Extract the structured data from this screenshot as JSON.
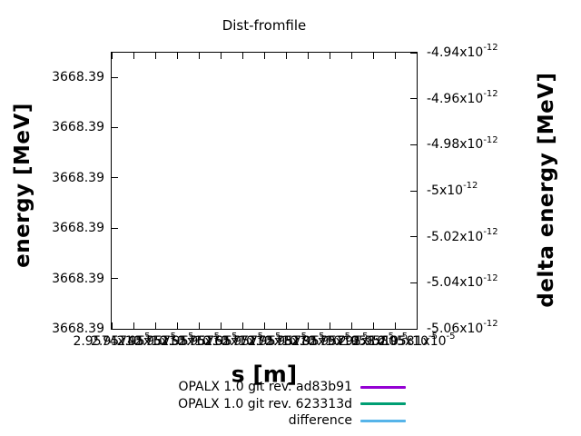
{
  "title": "Dist-fromfile",
  "axes": {
    "left": {
      "label": "energy [MeV]",
      "ticks": [
        "3668.39",
        "3668.39",
        "3668.39",
        "3668.39",
        "3668.39",
        "3668.39"
      ]
    },
    "right": {
      "label": "delta energy [MeV]",
      "ticks": [
        {
          "text": "-4.94x10",
          "sup": "-12"
        },
        {
          "text": "-4.96x10",
          "sup": "-12"
        },
        {
          "text": "-4.98x10",
          "sup": "-12"
        },
        {
          "text": "-5x10",
          "sup": "-12"
        },
        {
          "text": "-5.02x10",
          "sup": "-12"
        },
        {
          "text": "-5.04x10",
          "sup": "-12"
        },
        {
          "text": "-5.06x10",
          "sup": "-12"
        }
      ]
    },
    "bottom": {
      "label": "s [m]",
      "ticks": [
        {
          "text": "2.9574x10",
          "sup": "-5"
        },
        {
          "text": "2.95745x10",
          "sup": "-5"
        },
        {
          "text": "2.9575x10",
          "sup": "-5"
        },
        {
          "text": "2.95755x10",
          "sup": "-5"
        },
        {
          "text": "2.9576x10",
          "sup": "-5"
        },
        {
          "text": "2.95765x10",
          "sup": "-5"
        },
        {
          "text": "2.9577x10",
          "sup": "-5"
        },
        {
          "text": "2.95775x10",
          "sup": "-5"
        },
        {
          "text": "2.9578x10",
          "sup": "-5"
        },
        {
          "text": "2.95785x10",
          "sup": "-5"
        },
        {
          "text": "2.9579x10",
          "sup": "-5"
        },
        {
          "text": "2.95795x10",
          "sup": "-5"
        },
        {
          "text": "2.958x10",
          "sup": "-5"
        },
        {
          "text": "2.95805x10",
          "sup": "-5"
        },
        {
          "text": "2.9581x10",
          "sup": "-5"
        }
      ]
    }
  },
  "legend": {
    "items": [
      {
        "label": "OPALX 1.0 git rev. ad83b91",
        "color": "#9400d3"
      },
      {
        "label": "OPALX 1.0 git rev. 623313d",
        "color": "#009e73"
      },
      {
        "label": "difference",
        "color": "#56b4e9"
      }
    ]
  },
  "chart_data": {
    "type": "line",
    "title": "Dist-fromfile",
    "xlabel": "s [m]",
    "ylabel": "energy [MeV]",
    "y2label": "delta energy [MeV]",
    "x_tick_labels": [
      "2.9574e-5",
      "2.95745e-5",
      "2.9575e-5",
      "2.95755e-5",
      "2.9576e-5",
      "2.95765e-5",
      "2.9577e-5",
      "2.95775e-5",
      "2.9578e-5",
      "2.95785e-5",
      "2.9579e-5",
      "2.95795e-5",
      "2.958e-5",
      "2.95805e-5",
      "2.9581e-5"
    ],
    "y_left_tick_labels": [
      "3668.39",
      "3668.39",
      "3668.39",
      "3668.39",
      "3668.39",
      "3668.39"
    ],
    "y_right_tick_labels": [
      "-4.94e-12",
      "-4.96e-12",
      "-4.98e-12",
      "-5e-12",
      "-5.02e-12",
      "-5.04e-12",
      "-5.06e-12"
    ],
    "y2lim": [
      -5.06e-12,
      -4.94e-12
    ],
    "grid": false,
    "legend_position": "below",
    "series": [
      {
        "name": "OPALX 1.0 git rev. ad83b91",
        "color": "#9400d3",
        "values": []
      },
      {
        "name": "OPALX 1.0 git rev. 623313d",
        "color": "#009e73",
        "values": []
      },
      {
        "name": "difference",
        "color": "#56b4e9",
        "values": []
      }
    ]
  }
}
